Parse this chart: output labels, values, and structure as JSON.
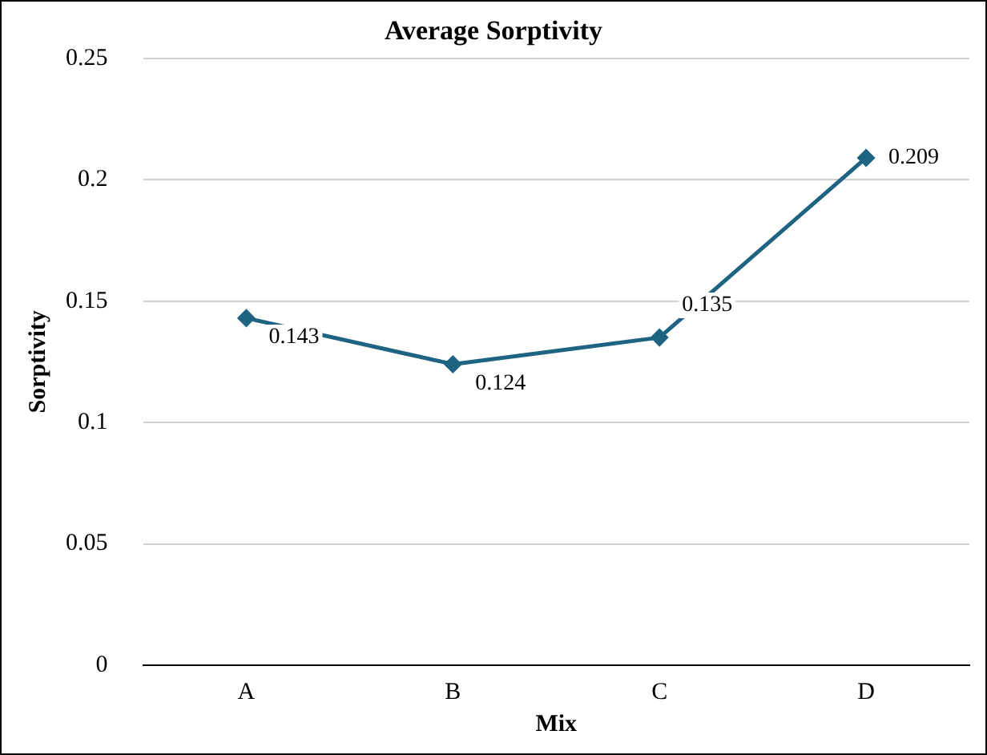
{
  "chart_data": {
    "type": "line",
    "title": "Average Sorptivity",
    "xlabel": "Mix",
    "ylabel": "Sorptivity",
    "categories": [
      "A",
      "B",
      "C",
      "D"
    ],
    "series": [
      {
        "color": "#1f6382",
        "values": [
          0.143,
          0.124,
          0.135,
          0.209
        ]
      }
    ],
    "ylim": [
      0,
      0.25
    ],
    "yticks": [
      0,
      0.05,
      0.1,
      0.15,
      0.2,
      0.25
    ],
    "grid": "y",
    "legend": false,
    "marker": "diamond",
    "line_style": "solid",
    "data_labels": true
  }
}
